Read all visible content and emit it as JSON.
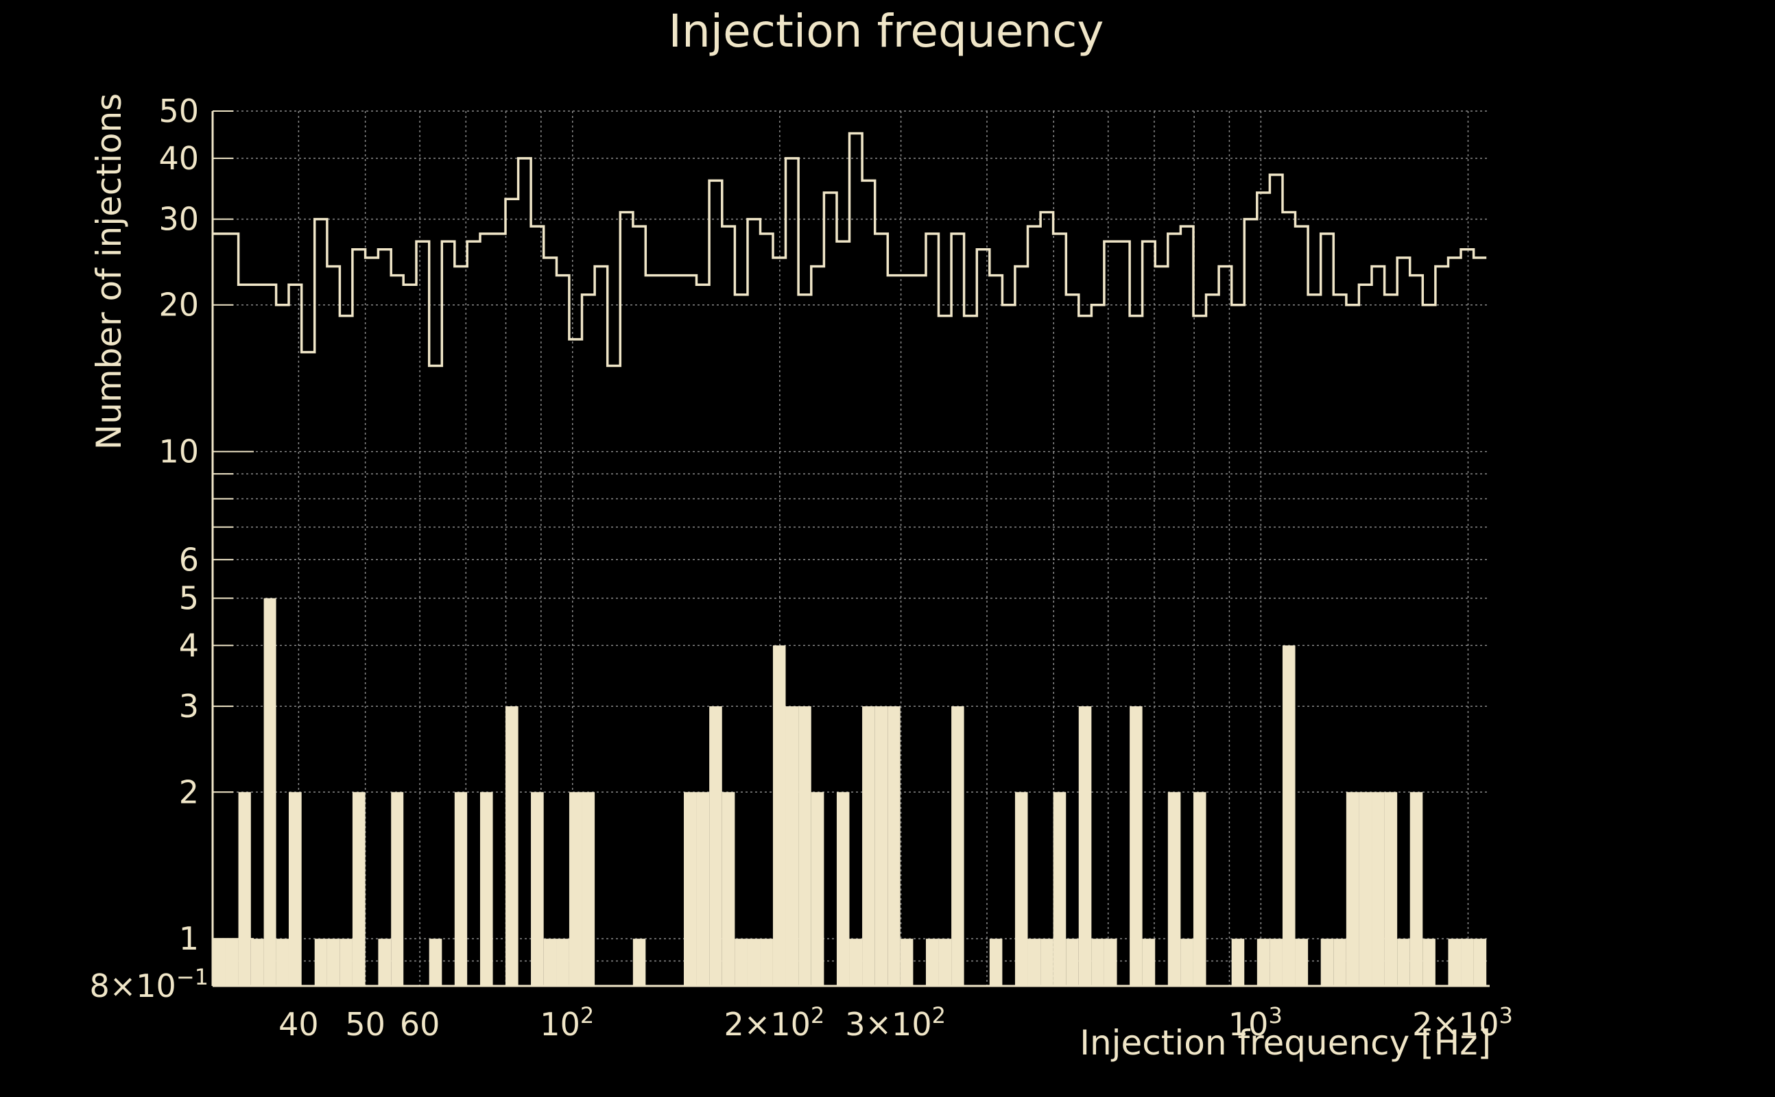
{
  "chart_data": {
    "type": "histogram-step",
    "title": "Injection frequency",
    "xlabel": "Injection frequency [Hz]",
    "ylabel": "Number of injections",
    "x_scale": "log",
    "y_scale": "log",
    "xlim": [
      30,
      2150
    ],
    "ylim": [
      0.8,
      50
    ],
    "grid": true,
    "colors": {
      "background": "#000000",
      "foreground": "#f0e6c8",
      "grid": "#8a8a8a"
    },
    "x_ticks": [
      {
        "value": 40,
        "label": "40",
        "sup": ""
      },
      {
        "value": 50,
        "label": "50",
        "sup": ""
      },
      {
        "value": 60,
        "label": "60",
        "sup": ""
      },
      {
        "value": 100,
        "label": "10",
        "sup": "2"
      },
      {
        "value": 200,
        "label": "2×10",
        "sup": "2"
      },
      {
        "value": 300,
        "label": "3×10",
        "sup": "2"
      },
      {
        "value": 1000,
        "label": "10",
        "sup": "3"
      },
      {
        "value": 2000,
        "label": "2×10",
        "sup": "3"
      }
    ],
    "y_ticks": [
      {
        "value": 0.8,
        "label": "8×10",
        "sup": "−1"
      },
      {
        "value": 1,
        "label": "1",
        "sup": ""
      },
      {
        "value": 2,
        "label": "2",
        "sup": ""
      },
      {
        "value": 3,
        "label": "3",
        "sup": ""
      },
      {
        "value": 4,
        "label": "4",
        "sup": ""
      },
      {
        "value": 5,
        "label": "5",
        "sup": ""
      },
      {
        "value": 6,
        "label": "6",
        "sup": ""
      },
      {
        "value": 10,
        "label": "10",
        "sup": ""
      },
      {
        "value": 20,
        "label": "20",
        "sup": ""
      },
      {
        "value": 30,
        "label": "30",
        "sup": ""
      },
      {
        "value": 40,
        "label": "40",
        "sup": ""
      },
      {
        "value": 50,
        "label": "50",
        "sup": ""
      }
    ],
    "bin_edges": [
      30.0,
      31.3,
      32.7,
      34.1,
      35.6,
      37.1,
      38.7,
      40.4,
      42.2,
      44.0,
      45.9,
      47.9,
      50.0,
      52.2,
      54.5,
      56.8,
      59.3,
      61.9,
      64.6,
      67.4,
      70.3,
      73.4,
      76.6,
      79.9,
      83.4,
      87.0,
      90.8,
      94.8,
      98.9,
      103.2,
      107.7,
      112.4,
      117.3,
      122.4,
      127.7,
      133.3,
      139.1,
      145.1,
      151.4,
      158.0,
      164.9,
      172.1,
      179.6,
      187.4,
      195.5,
      204.0,
      212.9,
      222.2,
      231.9,
      242.0,
      252.5,
      263.5,
      275.0,
      287.0,
      299.4,
      312.5,
      326.1,
      340.3,
      355.1,
      370.5,
      386.7,
      403.5,
      421.1,
      439.4,
      458.5,
      478.5,
      499.3,
      521.1,
      543.7,
      567.4,
      592.1,
      617.9,
      644.8,
      672.8,
      702.1,
      732.7,
      764.6,
      797.9,
      832.6,
      868.8,
      906.7,
      946.2,
      987.4,
      1030.3,
      1075.2,
      1122.0,
      1170.9,
      1221.9,
      1275.1,
      1330.6,
      1388.5,
      1449.0,
      1512.1,
      1577.9,
      1646.6,
      1718.3,
      1793.1,
      1871.2,
      1952.6,
      2037.6,
      2126.3
    ],
    "series": [
      {
        "style": "step-outline",
        "values": [
          28,
          28,
          22,
          22,
          22,
          20,
          22,
          16,
          30,
          24,
          19,
          26,
          25,
          26,
          23,
          22,
          27,
          15,
          27,
          24,
          27,
          28,
          28,
          33,
          40,
          29,
          25,
          23,
          17,
          21,
          24,
          15,
          31,
          29,
          23,
          23,
          23,
          23,
          22,
          36,
          29,
          21,
          30,
          28,
          25,
          40,
          21,
          24,
          34,
          27,
          45,
          36,
          28,
          23,
          23,
          23,
          28,
          19,
          28,
          19,
          26,
          23,
          20,
          24,
          29,
          31,
          28,
          21,
          19,
          20,
          27,
          27,
          19,
          27,
          24,
          28,
          29,
          19,
          21,
          24,
          20,
          30,
          34,
          37,
          31,
          29,
          21,
          28,
          21,
          20,
          22,
          24,
          21,
          25,
          23,
          20,
          24,
          25,
          26,
          25,
          25
        ]
      },
      {
        "style": "filled",
        "values": [
          1,
          1,
          2,
          1,
          5,
          1,
          2,
          0,
          1,
          1,
          1,
          2,
          0,
          1,
          2,
          0,
          0,
          1,
          0,
          2,
          0,
          2,
          0,
          3,
          0,
          2,
          1,
          1,
          2,
          2,
          0,
          0,
          0,
          1,
          0,
          0,
          0,
          2,
          2,
          3,
          2,
          1,
          1,
          1,
          4,
          3,
          3,
          2,
          0,
          2,
          1,
          3,
          3,
          3,
          1,
          0,
          1,
          1,
          3,
          0,
          0,
          1,
          0,
          2,
          1,
          1,
          2,
          1,
          3,
          1,
          1,
          0,
          3,
          1,
          0,
          2,
          1,
          2,
          0,
          0,
          1,
          0,
          1,
          1,
          4,
          1,
          0,
          1,
          1,
          2,
          2,
          2,
          2,
          1,
          2,
          1,
          0,
          1,
          1,
          1,
          0
        ]
      }
    ]
  }
}
